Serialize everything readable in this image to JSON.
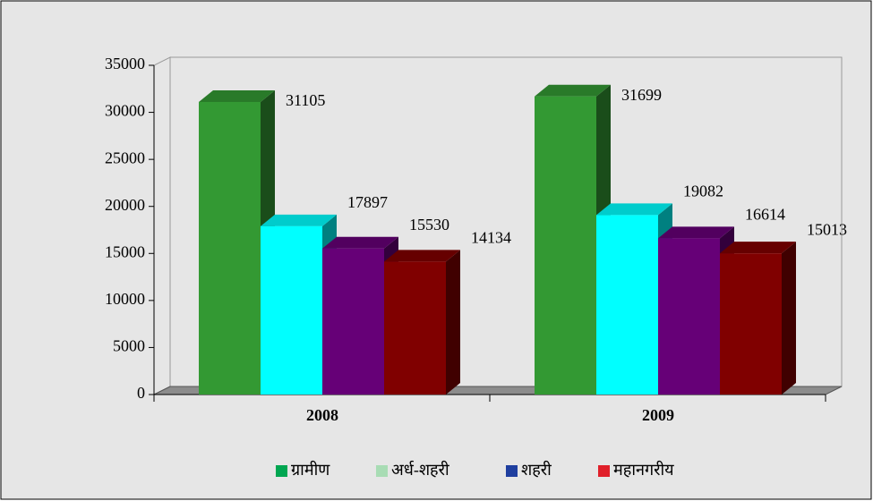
{
  "chart_data": {
    "type": "bar3d",
    "categories": [
      "2008",
      "2009"
    ],
    "series": [
      {
        "name": "ग्रामीण",
        "color": "#339933",
        "legend_color": "#00a651",
        "values": [
          31105,
          31699
        ]
      },
      {
        "name": "अर्ध-शहरी",
        "color": "#00ffff",
        "legend_color": "#a8dcb4",
        "values": [
          17897,
          19082
        ]
      },
      {
        "name": "शहरी",
        "color": "#660077",
        "legend_color": "#1f3f9f",
        "values": [
          15530,
          16614
        ]
      },
      {
        "name": "महानगरीय",
        "color": "#800000",
        "legend_color": "#e0202a",
        "values": [
          14134,
          15013
        ]
      }
    ],
    "ylim": [
      0,
      35000
    ],
    "yticks": [
      0,
      5000,
      10000,
      15000,
      20000,
      25000,
      30000,
      35000
    ],
    "legend": "bottom"
  }
}
